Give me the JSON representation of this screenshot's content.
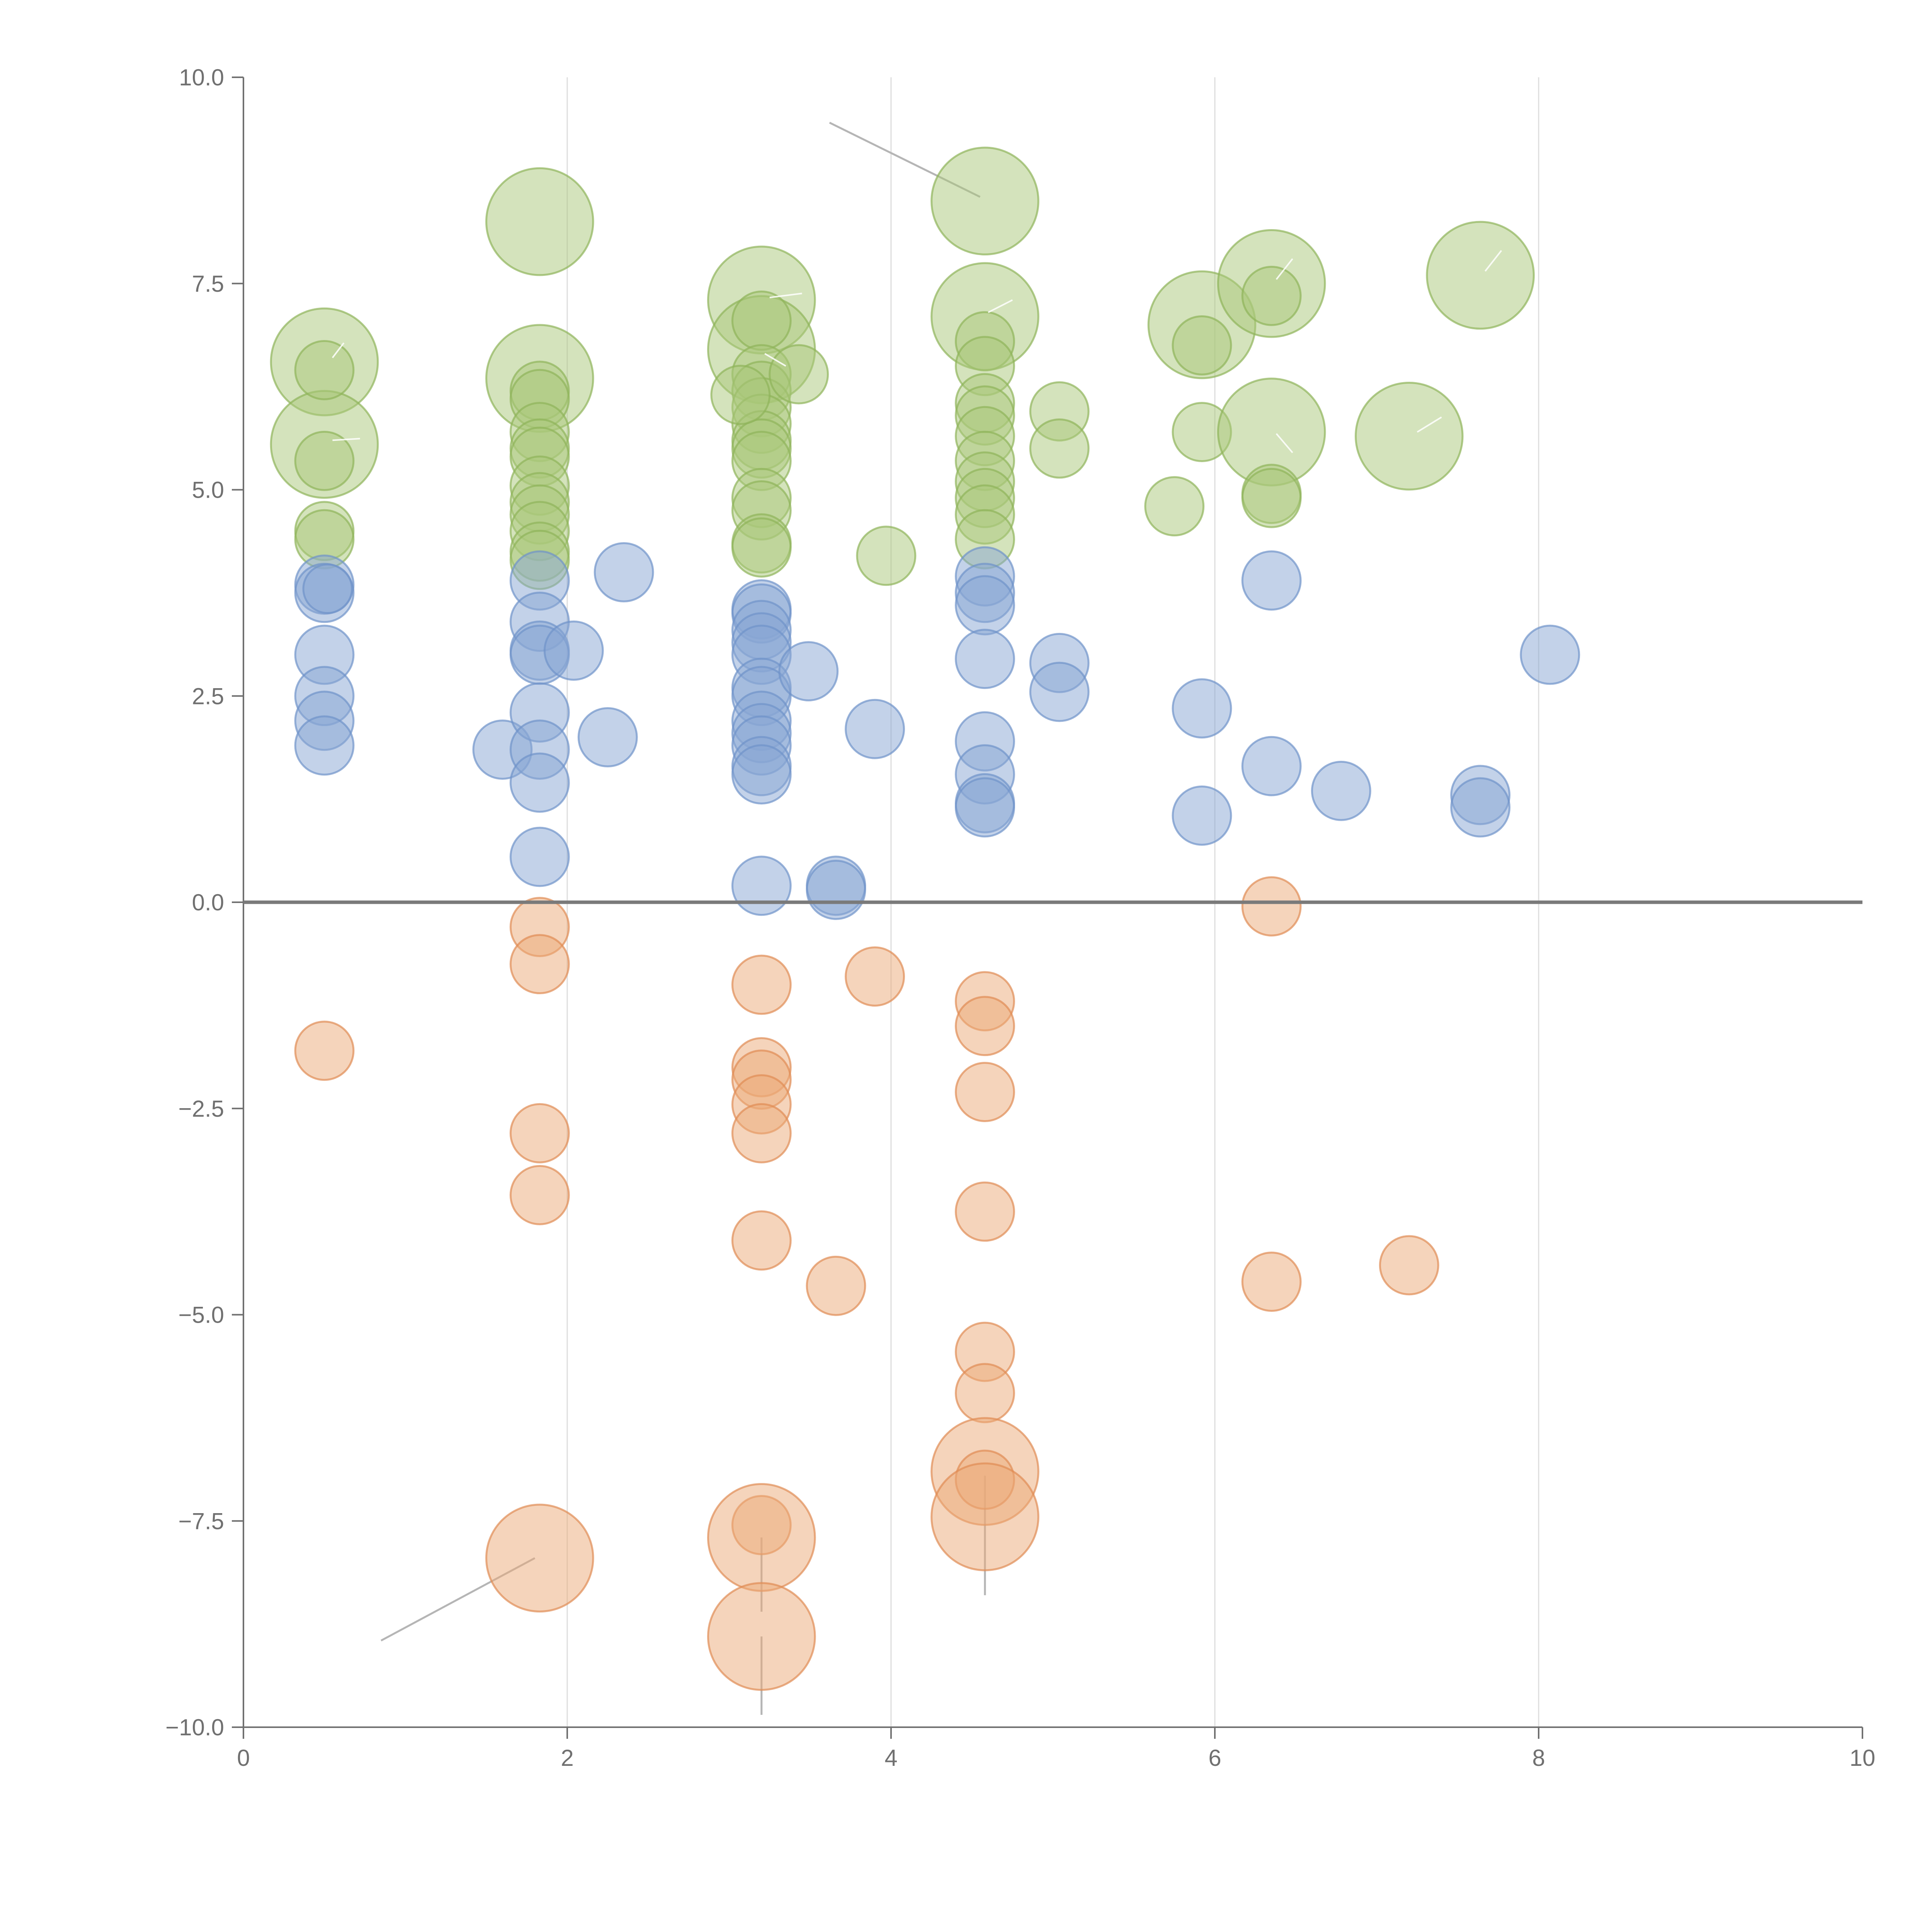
{
  "chart_data": {
    "type": "scatter",
    "title": "",
    "xlabel": "",
    "ylabel": "",
    "xlim": [
      0,
      10
    ],
    "ylim": [
      -10,
      10
    ],
    "x_ticks": [
      0,
      2,
      4,
      6,
      8,
      10
    ],
    "x_tick_labels": [
      "0",
      "2",
      "4",
      "6",
      "8",
      "10"
    ],
    "y_ticks": [
      10,
      7.5,
      5,
      2.5,
      0,
      -2.5,
      -5,
      -7.5,
      -10
    ],
    "y_tick_labels": [
      "10.0",
      "7.5",
      "5.0",
      "2.5",
      "0.0",
      "−2.5",
      "−5.0",
      "−7.5",
      "−10.0"
    ],
    "vertical_grid": true,
    "zero_line": true,
    "series": [
      {
        "name": "green",
        "color": "#a9c77a",
        "stroke": "#8fb45a",
        "points": [
          {
            "x": 0.5,
            "y": 6.55,
            "r": 0.33
          },
          {
            "x": 0.5,
            "y": 5.55,
            "r": 0.33
          },
          {
            "x": 0.5,
            "y": 6.45,
            "r": 0.18
          },
          {
            "x": 0.5,
            "y": 5.35,
            "r": 0.18
          },
          {
            "x": 0.5,
            "y": 4.5,
            "r": 0.18
          },
          {
            "x": 0.5,
            "y": 4.4,
            "r": 0.18
          },
          {
            "x": 1.83,
            "y": 8.25,
            "r": 0.33
          },
          {
            "x": 1.83,
            "y": 6.35,
            "r": 0.33
          },
          {
            "x": 1.83,
            "y": 6.2,
            "r": 0.18
          },
          {
            "x": 1.83,
            "y": 6.1,
            "r": 0.18
          },
          {
            "x": 1.83,
            "y": 5.7,
            "r": 0.18
          },
          {
            "x": 1.83,
            "y": 5.5,
            "r": 0.18
          },
          {
            "x": 1.83,
            "y": 5.4,
            "r": 0.18
          },
          {
            "x": 1.83,
            "y": 5.05,
            "r": 0.18
          },
          {
            "x": 1.83,
            "y": 4.85,
            "r": 0.18
          },
          {
            "x": 1.83,
            "y": 4.7,
            "r": 0.18
          },
          {
            "x": 1.83,
            "y": 4.5,
            "r": 0.18
          },
          {
            "x": 1.83,
            "y": 4.25,
            "r": 0.18
          },
          {
            "x": 1.83,
            "y": 4.15,
            "r": 0.18
          },
          {
            "x": 3.2,
            "y": 7.3,
            "r": 0.33
          },
          {
            "x": 3.2,
            "y": 6.7,
            "r": 0.33
          },
          {
            "x": 3.2,
            "y": 7.05,
            "r": 0.18
          },
          {
            "x": 3.2,
            "y": 6.4,
            "r": 0.18
          },
          {
            "x": 3.2,
            "y": 6.2,
            "r": 0.18
          },
          {
            "x": 3.2,
            "y": 6.0,
            "r": 0.18
          },
          {
            "x": 3.2,
            "y": 5.8,
            "r": 0.18
          },
          {
            "x": 3.2,
            "y": 5.6,
            "r": 0.18
          },
          {
            "x": 3.2,
            "y": 5.5,
            "r": 0.18
          },
          {
            "x": 3.2,
            "y": 5.35,
            "r": 0.18
          },
          {
            "x": 3.2,
            "y": 4.9,
            "r": 0.18
          },
          {
            "x": 3.2,
            "y": 4.75,
            "r": 0.18
          },
          {
            "x": 3.2,
            "y": 4.35,
            "r": 0.18
          },
          {
            "x": 3.2,
            "y": 4.3,
            "r": 0.18
          },
          {
            "x": 3.07,
            "y": 6.15,
            "r": 0.18
          },
          {
            "x": 3.43,
            "y": 6.4,
            "r": 0.18
          },
          {
            "x": 3.97,
            "y": 4.2,
            "r": 0.18
          },
          {
            "x": 4.58,
            "y": 8.5,
            "r": 0.33
          },
          {
            "x": 4.58,
            "y": 7.1,
            "r": 0.33
          },
          {
            "x": 4.58,
            "y": 6.8,
            "r": 0.18
          },
          {
            "x": 4.58,
            "y": 6.5,
            "r": 0.18
          },
          {
            "x": 4.58,
            "y": 6.05,
            "r": 0.18
          },
          {
            "x": 4.58,
            "y": 5.9,
            "r": 0.18
          },
          {
            "x": 4.58,
            "y": 5.65,
            "r": 0.18
          },
          {
            "x": 4.58,
            "y": 5.35,
            "r": 0.18
          },
          {
            "x": 4.58,
            "y": 5.1,
            "r": 0.18
          },
          {
            "x": 4.58,
            "y": 4.9,
            "r": 0.18
          },
          {
            "x": 4.58,
            "y": 4.7,
            "r": 0.18
          },
          {
            "x": 4.58,
            "y": 4.4,
            "r": 0.18
          },
          {
            "x": 5.04,
            "y": 5.95,
            "r": 0.18
          },
          {
            "x": 5.04,
            "y": 5.5,
            "r": 0.18
          },
          {
            "x": 5.75,
            "y": 4.8,
            "r": 0.18
          },
          {
            "x": 5.92,
            "y": 7.0,
            "r": 0.33
          },
          {
            "x": 5.92,
            "y": 6.75,
            "r": 0.18
          },
          {
            "x": 5.92,
            "y": 5.7,
            "r": 0.18
          },
          {
            "x": 6.35,
            "y": 7.5,
            "r": 0.33
          },
          {
            "x": 6.35,
            "y": 7.35,
            "r": 0.18
          },
          {
            "x": 6.35,
            "y": 5.7,
            "r": 0.33
          },
          {
            "x": 6.35,
            "y": 4.95,
            "r": 0.18
          },
          {
            "x": 6.35,
            "y": 4.9,
            "r": 0.18
          },
          {
            "x": 7.2,
            "y": 5.65,
            "r": 0.33
          },
          {
            "x": 7.64,
            "y": 7.6,
            "r": 0.33
          }
        ]
      },
      {
        "name": "blue",
        "color": "#87a6d4",
        "stroke": "#6f93c9",
        "points": [
          {
            "x": 0.5,
            "y": 3.85,
            "r": 0.18
          },
          {
            "x": 0.5,
            "y": 3.75,
            "r": 0.18
          },
          {
            "x": 0.52,
            "y": 3.8,
            "r": 0.15
          },
          {
            "x": 0.5,
            "y": 3.0,
            "r": 0.18
          },
          {
            "x": 0.5,
            "y": 2.5,
            "r": 0.18
          },
          {
            "x": 0.5,
            "y": 2.2,
            "r": 0.18
          },
          {
            "x": 0.5,
            "y": 1.9,
            "r": 0.18
          },
          {
            "x": 1.6,
            "y": 1.85,
            "r": 0.18
          },
          {
            "x": 1.83,
            "y": 3.9,
            "r": 0.18
          },
          {
            "x": 1.83,
            "y": 3.4,
            "r": 0.18
          },
          {
            "x": 1.83,
            "y": 3.05,
            "r": 0.18
          },
          {
            "x": 1.83,
            "y": 3.0,
            "r": 0.18
          },
          {
            "x": 1.83,
            "y": 2.3,
            "r": 0.18
          },
          {
            "x": 1.83,
            "y": 1.85,
            "r": 0.18
          },
          {
            "x": 1.83,
            "y": 1.45,
            "r": 0.18
          },
          {
            "x": 1.83,
            "y": 0.55,
            "r": 0.18
          },
          {
            "x": 2.04,
            "y": 3.05,
            "r": 0.18
          },
          {
            "x": 2.25,
            "y": 2.0,
            "r": 0.18
          },
          {
            "x": 2.35,
            "y": 4.0,
            "r": 0.18
          },
          {
            "x": 3.2,
            "y": 3.55,
            "r": 0.18
          },
          {
            "x": 3.2,
            "y": 3.5,
            "r": 0.18
          },
          {
            "x": 3.2,
            "y": 3.3,
            "r": 0.18
          },
          {
            "x": 3.2,
            "y": 3.15,
            "r": 0.18
          },
          {
            "x": 3.2,
            "y": 3.0,
            "r": 0.18
          },
          {
            "x": 3.2,
            "y": 2.6,
            "r": 0.18
          },
          {
            "x": 3.2,
            "y": 2.5,
            "r": 0.18
          },
          {
            "x": 3.2,
            "y": 2.2,
            "r": 0.18
          },
          {
            "x": 3.2,
            "y": 2.05,
            "r": 0.18
          },
          {
            "x": 3.2,
            "y": 1.9,
            "r": 0.18
          },
          {
            "x": 3.2,
            "y": 1.65,
            "r": 0.18
          },
          {
            "x": 3.2,
            "y": 1.55,
            "r": 0.18
          },
          {
            "x": 3.2,
            "y": 0.2,
            "r": 0.18
          },
          {
            "x": 3.49,
            "y": 2.8,
            "r": 0.18
          },
          {
            "x": 3.66,
            "y": 0.2,
            "r": 0.18
          },
          {
            "x": 3.66,
            "y": 0.15,
            "r": 0.18
          },
          {
            "x": 3.9,
            "y": 2.1,
            "r": 0.18
          },
          {
            "x": 4.58,
            "y": 3.95,
            "r": 0.18
          },
          {
            "x": 4.58,
            "y": 3.75,
            "r": 0.18
          },
          {
            "x": 4.58,
            "y": 3.6,
            "r": 0.18
          },
          {
            "x": 4.58,
            "y": 2.95,
            "r": 0.18
          },
          {
            "x": 4.58,
            "y": 1.95,
            "r": 0.18
          },
          {
            "x": 4.58,
            "y": 1.55,
            "r": 0.18
          },
          {
            "x": 4.58,
            "y": 1.2,
            "r": 0.18
          },
          {
            "x": 4.58,
            "y": 1.15,
            "r": 0.18
          },
          {
            "x": 5.04,
            "y": 2.9,
            "r": 0.18
          },
          {
            "x": 5.04,
            "y": 2.55,
            "r": 0.18
          },
          {
            "x": 5.92,
            "y": 2.35,
            "r": 0.18
          },
          {
            "x": 5.92,
            "y": 1.05,
            "r": 0.18
          },
          {
            "x": 6.35,
            "y": 3.9,
            "r": 0.18
          },
          {
            "x": 6.35,
            "y": 1.65,
            "r": 0.18
          },
          {
            "x": 6.78,
            "y": 1.35,
            "r": 0.18
          },
          {
            "x": 7.64,
            "y": 1.3,
            "r": 0.18
          },
          {
            "x": 7.64,
            "y": 1.15,
            "r": 0.18
          },
          {
            "x": 8.07,
            "y": 3.0,
            "r": 0.18
          }
        ]
      },
      {
        "name": "orange",
        "color": "#eba978",
        "stroke": "#e08c54",
        "points": [
          {
            "x": 0.5,
            "y": -1.8,
            "r": 0.18
          },
          {
            "x": 1.83,
            "y": -0.3,
            "r": 0.18
          },
          {
            "x": 1.83,
            "y": -0.75,
            "r": 0.18
          },
          {
            "x": 1.83,
            "y": -2.8,
            "r": 0.18
          },
          {
            "x": 1.83,
            "y": -3.55,
            "r": 0.18
          },
          {
            "x": 1.83,
            "y": -7.95,
            "r": 0.33
          },
          {
            "x": 3.2,
            "y": -1.0,
            "r": 0.18
          },
          {
            "x": 3.2,
            "y": -2.0,
            "r": 0.18
          },
          {
            "x": 3.2,
            "y": -2.15,
            "r": 0.18
          },
          {
            "x": 3.2,
            "y": -2.45,
            "r": 0.18
          },
          {
            "x": 3.2,
            "y": -2.8,
            "r": 0.18
          },
          {
            "x": 3.2,
            "y": -4.1,
            "r": 0.18
          },
          {
            "x": 3.2,
            "y": -7.55,
            "r": 0.18
          },
          {
            "x": 3.2,
            "y": -7.7,
            "r": 0.33
          },
          {
            "x": 3.2,
            "y": -8.9,
            "r": 0.33
          },
          {
            "x": 3.66,
            "y": -4.65,
            "r": 0.18
          },
          {
            "x": 3.9,
            "y": -0.9,
            "r": 0.18
          },
          {
            "x": 4.58,
            "y": -1.2,
            "r": 0.18
          },
          {
            "x": 4.58,
            "y": -1.5,
            "r": 0.18
          },
          {
            "x": 4.58,
            "y": -2.3,
            "r": 0.18
          },
          {
            "x": 4.58,
            "y": -3.75,
            "r": 0.18
          },
          {
            "x": 4.58,
            "y": -5.45,
            "r": 0.18
          },
          {
            "x": 4.58,
            "y": -5.95,
            "r": 0.18
          },
          {
            "x": 4.58,
            "y": -6.9,
            "r": 0.33
          },
          {
            "x": 4.58,
            "y": -7.0,
            "r": 0.18
          },
          {
            "x": 4.58,
            "y": -7.45,
            "r": 0.33
          },
          {
            "x": 6.35,
            "y": -0.05,
            "r": 0.18
          },
          {
            "x": 6.35,
            "y": -4.6,
            "r": 0.18
          },
          {
            "x": 7.2,
            "y": -4.4,
            "r": 0.18
          }
        ]
      }
    ],
    "leader_lines": [
      {
        "from": [
          3.62,
          9.45
        ],
        "to": [
          4.55,
          8.55
        ],
        "color": "#b5b5b5"
      },
      {
        "from": [
          0.85,
          -8.95
        ],
        "to": [
          1.8,
          -7.95
        ],
        "color": "#b5b5b5"
      },
      {
        "from": [
          3.2,
          -7.7
        ],
        "to": [
          3.2,
          -8.6
        ],
        "color": "#b5b5b5"
      },
      {
        "from": [
          3.2,
          -8.9
        ],
        "to": [
          3.2,
          -9.85
        ],
        "color": "#b5b5b5"
      },
      {
        "from": [
          4.58,
          -6.95
        ],
        "to": [
          4.58,
          -8.4
        ],
        "color": "#b5b5b5"
      },
      {
        "from": [
          0.55,
          6.6
        ],
        "to": [
          0.62,
          6.78
        ],
        "color": "#ffffff"
      },
      {
        "from": [
          0.55,
          5.6
        ],
        "to": [
          0.72,
          5.62
        ],
        "color": "#ffffff"
      },
      {
        "from": [
          3.25,
          7.33
        ],
        "to": [
          3.45,
          7.38
        ],
        "color": "#ffffff"
      },
      {
        "from": [
          3.22,
          6.65
        ],
        "to": [
          3.35,
          6.5
        ],
        "color": "#ffffff"
      },
      {
        "from": [
          4.6,
          7.15
        ],
        "to": [
          4.75,
          7.3
        ],
        "color": "#ffffff"
      },
      {
        "from": [
          6.38,
          7.55
        ],
        "to": [
          6.48,
          7.8
        ],
        "color": "#ffffff"
      },
      {
        "from": [
          6.38,
          5.68
        ],
        "to": [
          6.48,
          5.45
        ],
        "color": "#ffffff"
      },
      {
        "from": [
          7.25,
          5.7
        ],
        "to": [
          7.4,
          5.88
        ],
        "color": "#ffffff"
      },
      {
        "from": [
          7.67,
          7.65
        ],
        "to": [
          7.77,
          7.9
        ],
        "color": "#ffffff"
      }
    ],
    "colors": {
      "axis": "#707070",
      "zero_line": "#7a7a7a",
      "grid": "#dddddd",
      "tick_label": "#707070",
      "background": "#ffffff"
    }
  }
}
